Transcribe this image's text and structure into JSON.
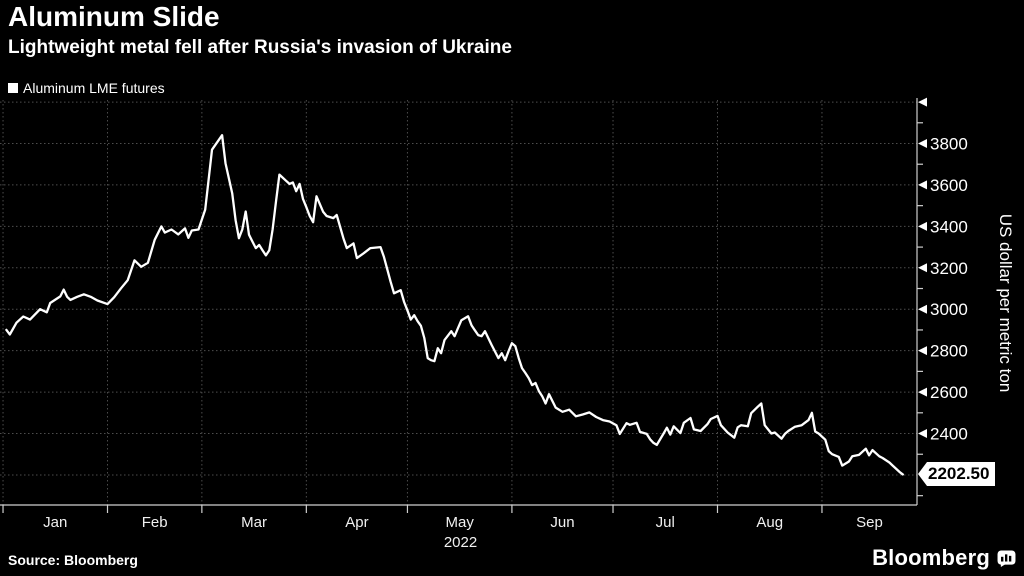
{
  "header": {
    "title": "Aluminum Slide",
    "subtitle": "Lightweight metal fell after Russia's invasion of Ukraine"
  },
  "legend": {
    "label": "Aluminum LME futures"
  },
  "footer": {
    "source": "Source: Bloomberg",
    "brand": "Bloomberg"
  },
  "colors": {
    "background": "#000000",
    "line": "#ffffff",
    "grid": "#4d4d4d",
    "axis": "#cfcfcf",
    "tick_label": "#f0f0f0",
    "badge_bg": "#ffffff",
    "badge_text": "#000000"
  },
  "chart_data": {
    "type": "line",
    "title": "Aluminum Slide",
    "subtitle": "Lightweight metal fell after Russia's invasion of Ukraine",
    "legend_position": "top-left",
    "grid": true,
    "y": {
      "axis_label": "US dollar per metric ton",
      "lim": [
        2055,
        4010
      ],
      "labeled_ticks": [
        3800,
        3600,
        3400,
        3200,
        3000,
        2800,
        2600,
        2400
      ],
      "arrow_ticks": [
        4000,
        3800,
        3600,
        3400,
        3200,
        3000,
        2800,
        2600,
        2400
      ],
      "gridlines": [
        4000,
        3800,
        3600,
        3400,
        3200,
        3000,
        2800,
        2600,
        2400,
        2200
      ],
      "minor_ticks": [
        3900,
        3700,
        3500,
        3300,
        3100,
        2900,
        2700,
        2500,
        2300,
        2100
      ]
    },
    "x": {
      "unit": "days since Jan 1 2022",
      "day_min": -0.9,
      "day_max": 271.2,
      "year_label": "2022",
      "months": [
        {
          "label": "Jan",
          "start_day": 0
        },
        {
          "label": "Feb",
          "start_day": 31
        },
        {
          "label": "Mar",
          "start_day": 59
        },
        {
          "label": "Apr",
          "start_day": 90
        },
        {
          "label": "May",
          "start_day": 120
        },
        {
          "label": "Jun",
          "start_day": 151
        },
        {
          "label": "Jul",
          "start_day": 181
        },
        {
          "label": "Aug",
          "start_day": 212
        },
        {
          "label": "Sep",
          "start_day": 243
        }
      ]
    },
    "last_price": 2202.5,
    "last_price_label": "2202.50",
    "series": [
      {
        "name": "Aluminum LME futures",
        "color": "#ffffff",
        "points": [
          [
            1,
            2900
          ],
          [
            2,
            2878
          ],
          [
            4,
            2935
          ],
          [
            6,
            2965
          ],
          [
            8,
            2950
          ],
          [
            11,
            3000
          ],
          [
            13,
            2985
          ],
          [
            14,
            3030
          ],
          [
            17,
            3062
          ],
          [
            18,
            3095
          ],
          [
            19,
            3060
          ],
          [
            20,
            3045
          ],
          [
            22,
            3060
          ],
          [
            24,
            3072
          ],
          [
            26,
            3060
          ],
          [
            28,
            3042
          ],
          [
            31,
            3025
          ],
          [
            33,
            3058
          ],
          [
            35,
            3101
          ],
          [
            37,
            3140
          ],
          [
            39,
            3236
          ],
          [
            41,
            3205
          ],
          [
            43,
            3224
          ],
          [
            45,
            3335
          ],
          [
            47,
            3400
          ],
          [
            48,
            3370
          ],
          [
            50,
            3385
          ],
          [
            52,
            3361
          ],
          [
            54,
            3390
          ],
          [
            55,
            3345
          ],
          [
            56,
            3380
          ],
          [
            58,
            3385
          ],
          [
            60,
            3481
          ],
          [
            61,
            3625
          ],
          [
            62,
            3770
          ],
          [
            65,
            3840
          ],
          [
            66,
            3705
          ],
          [
            68,
            3560
          ],
          [
            69,
            3430
          ],
          [
            70,
            3343
          ],
          [
            71,
            3385
          ],
          [
            72,
            3472
          ],
          [
            73,
            3360
          ],
          [
            74,
            3327
          ],
          [
            75,
            3295
          ],
          [
            76,
            3310
          ],
          [
            77,
            3285
          ],
          [
            78,
            3260
          ],
          [
            79,
            3285
          ],
          [
            80,
            3385
          ],
          [
            81,
            3520
          ],
          [
            82,
            3650
          ],
          [
            84,
            3620
          ],
          [
            85,
            3605
          ],
          [
            86,
            3612
          ],
          [
            87,
            3570
          ],
          [
            88,
            3605
          ],
          [
            89,
            3532
          ],
          [
            90,
            3493
          ],
          [
            91,
            3450
          ],
          [
            92,
            3420
          ],
          [
            93,
            3545
          ],
          [
            95,
            3470
          ],
          [
            96,
            3450
          ],
          [
            98,
            3440
          ],
          [
            99,
            3455
          ],
          [
            101,
            3343
          ],
          [
            102,
            3295
          ],
          [
            104,
            3318
          ],
          [
            105,
            3247
          ],
          [
            107,
            3270
          ],
          [
            109,
            3295
          ],
          [
            112,
            3300
          ],
          [
            113,
            3253
          ],
          [
            115,
            3133
          ],
          [
            116,
            3077
          ],
          [
            118,
            3092
          ],
          [
            119,
            3035
          ],
          [
            120,
            2995
          ],
          [
            121,
            2950
          ],
          [
            122,
            2971
          ],
          [
            123,
            2942
          ],
          [
            124,
            2920
          ],
          [
            125,
            2861
          ],
          [
            126,
            2764
          ],
          [
            127,
            2754
          ],
          [
            128,
            2749
          ],
          [
            129,
            2812
          ],
          [
            130,
            2788
          ],
          [
            131,
            2851
          ],
          [
            133,
            2894
          ],
          [
            134,
            2870
          ],
          [
            135,
            2909
          ],
          [
            136,
            2947
          ],
          [
            138,
            2966
          ],
          [
            139,
            2923
          ],
          [
            140,
            2899
          ],
          [
            141,
            2875
          ],
          [
            142,
            2870
          ],
          [
            143,
            2894
          ],
          [
            145,
            2827
          ],
          [
            147,
            2764
          ],
          [
            148,
            2788
          ],
          [
            149,
            2754
          ],
          [
            150,
            2797
          ],
          [
            151,
            2836
          ],
          [
            152,
            2822
          ],
          [
            153,
            2764
          ],
          [
            154,
            2716
          ],
          [
            155,
            2692
          ],
          [
            156,
            2667
          ],
          [
            157,
            2634
          ],
          [
            158,
            2644
          ],
          [
            159,
            2605
          ],
          [
            160,
            2580
          ],
          [
            161,
            2545
          ],
          [
            162,
            2590
          ],
          [
            164,
            2525
          ],
          [
            166,
            2505
          ],
          [
            168,
            2515
          ],
          [
            170,
            2483
          ],
          [
            172,
            2492
          ],
          [
            174,
            2502
          ],
          [
            176,
            2480
          ],
          [
            178,
            2465
          ],
          [
            180,
            2458
          ],
          [
            182,
            2440
          ],
          [
            183,
            2398
          ],
          [
            185,
            2450
          ],
          [
            186,
            2442
          ],
          [
            188,
            2452
          ],
          [
            189,
            2408
          ],
          [
            191,
            2398
          ],
          [
            192,
            2372
          ],
          [
            193,
            2355
          ],
          [
            194,
            2345
          ],
          [
            196,
            2400
          ],
          [
            197,
            2428
          ],
          [
            198,
            2395
          ],
          [
            199,
            2435
          ],
          [
            201,
            2402
          ],
          [
            202,
            2452
          ],
          [
            204,
            2475
          ],
          [
            205,
            2420
          ],
          [
            207,
            2412
          ],
          [
            209,
            2445
          ],
          [
            210,
            2470
          ],
          [
            212,
            2485
          ],
          [
            213,
            2440
          ],
          [
            215,
            2405
          ],
          [
            217,
            2380
          ],
          [
            218,
            2430
          ],
          [
            219,
            2440
          ],
          [
            221,
            2435
          ],
          [
            222,
            2498
          ],
          [
            224,
            2530
          ],
          [
            225,
            2545
          ],
          [
            226,
            2440
          ],
          [
            228,
            2400
          ],
          [
            229,
            2405
          ],
          [
            231,
            2375
          ],
          [
            232,
            2398
          ],
          [
            233,
            2412
          ],
          [
            235,
            2433
          ],
          [
            237,
            2440
          ],
          [
            239,
            2465
          ],
          [
            240,
            2500
          ],
          [
            241,
            2410
          ],
          [
            242,
            2400
          ],
          [
            244,
            2370
          ],
          [
            245,
            2315
          ],
          [
            246,
            2300
          ],
          [
            248,
            2287
          ],
          [
            249,
            2245
          ],
          [
            251,
            2265
          ],
          [
            252,
            2290
          ],
          [
            254,
            2297
          ],
          [
            256,
            2327
          ],
          [
            257,
            2295
          ],
          [
            258,
            2320
          ],
          [
            260,
            2290
          ],
          [
            261,
            2282
          ],
          [
            263,
            2260
          ],
          [
            264,
            2245
          ],
          [
            266,
            2215
          ],
          [
            267,
            2202.5
          ]
        ]
      }
    ]
  }
}
